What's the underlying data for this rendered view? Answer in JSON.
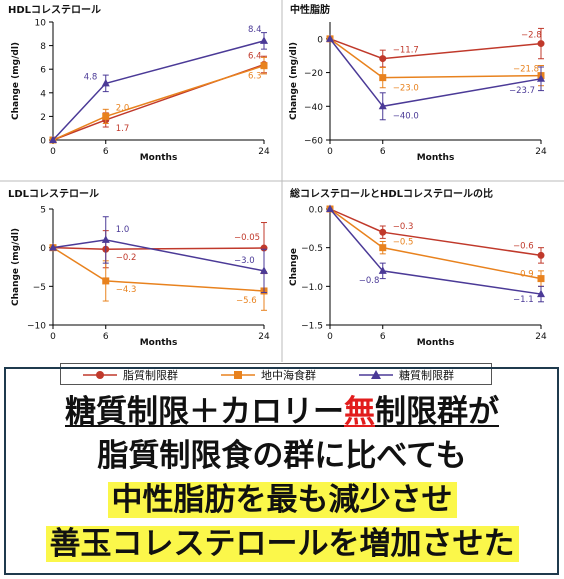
{
  "colors": {
    "fat_restricted": "#c0392b",
    "mediterranean": "#e8821e",
    "carb_restricted": "#4b3a97",
    "axis": "#000000",
    "separator": "#bbbbbb"
  },
  "chart_data": [
    {
      "type": "line",
      "title": "HDLコレステロール",
      "xlabel": "Months",
      "ylabel": "Change (mg/dl)",
      "x": [
        0,
        6,
        24
      ],
      "xticks": [
        0,
        6,
        24
      ],
      "ylim": [
        0,
        10
      ],
      "yticks": [
        0,
        2,
        4,
        6,
        8,
        10
      ],
      "series": [
        {
          "name": "脂質制限群",
          "values": [
            0,
            1.7,
            6.4
          ],
          "labels": [
            "",
            "1.7",
            "6.4"
          ],
          "err": [
            0,
            0.6,
            0.7
          ]
        },
        {
          "name": "地中海食群",
          "values": [
            0,
            2.0,
            6.3
          ],
          "labels": [
            "",
            "2.0",
            "6.3"
          ],
          "err": [
            0,
            0.6,
            0.7
          ]
        },
        {
          "name": "糖質制限群",
          "values": [
            0,
            4.8,
            8.4
          ],
          "labels": [
            "",
            "4.8",
            "8.4"
          ],
          "err": [
            0,
            0.7,
            0.7
          ]
        }
      ]
    },
    {
      "type": "line",
      "title": "中性脂肪",
      "xlabel": "Months",
      "ylabel": "Change (mg/dl)",
      "x": [
        0,
        6,
        24
      ],
      "xticks": [
        0,
        6,
        24
      ],
      "ylim": [
        -60,
        10
      ],
      "yticks": [
        -60,
        -40,
        -20,
        0
      ],
      "series": [
        {
          "name": "脂質制限群",
          "values": [
            0,
            -11.7,
            -2.8
          ],
          "labels": [
            "",
            "−11.7",
            "−2.8"
          ],
          "err": [
            0,
            5,
            9
          ]
        },
        {
          "name": "地中海食群",
          "values": [
            0,
            -23.0,
            -21.8
          ],
          "labels": [
            "",
            "−23.0",
            "−21.8"
          ],
          "err": [
            0,
            6,
            6
          ]
        },
        {
          "name": "糖質制限群",
          "values": [
            0,
            -40.0,
            -23.7
          ],
          "labels": [
            "",
            "−40.0",
            "−23.7"
          ],
          "err": [
            0,
            8,
            7
          ]
        }
      ]
    },
    {
      "type": "line",
      "title": "LDLコレステロール",
      "xlabel": "Months",
      "ylabel": "Change (mg/dl)",
      "x": [
        0,
        6,
        24
      ],
      "xticks": [
        0,
        6,
        24
      ],
      "ylim": [
        -10,
        5
      ],
      "yticks": [
        -10,
        -5,
        0,
        5
      ],
      "series": [
        {
          "name": "脂質制限群",
          "values": [
            0,
            -0.2,
            -0.05
          ],
          "labels": [
            "",
            "−0.2",
            "−0.05"
          ],
          "err": [
            0,
            2.4,
            3.3
          ]
        },
        {
          "name": "地中海食群",
          "values": [
            0,
            -4.3,
            -5.6
          ],
          "labels": [
            "",
            "−4.3",
            "−5.6"
          ],
          "err": [
            0,
            2.6,
            2.5
          ]
        },
        {
          "name": "糖質制限群",
          "values": [
            0,
            1.0,
            -3.0
          ],
          "labels": [
            "",
            "1.0",
            "−3.0"
          ],
          "err": [
            0,
            3,
            2.8
          ]
        }
      ]
    },
    {
      "type": "line",
      "title": "総コレステロールとHDLコレステロールの比",
      "xlabel": "Months",
      "ylabel": "Change",
      "x": [
        0,
        6,
        24
      ],
      "xticks": [
        0,
        6,
        24
      ],
      "ylim": [
        -1.5,
        0.0
      ],
      "yticks": [
        -1.5,
        -1.0,
        -0.5,
        0.0
      ],
      "series": [
        {
          "name": "脂質制限群",
          "values": [
            0,
            -0.3,
            -0.6
          ],
          "labels": [
            "",
            "−0.3",
            "−0.6"
          ],
          "err": [
            0,
            0.08,
            0.1
          ]
        },
        {
          "name": "地中海食群",
          "values": [
            0,
            -0.5,
            -0.9
          ],
          "labels": [
            "",
            "−0.5",
            "−0.9"
          ],
          "err": [
            0,
            0.08,
            0.1
          ]
        },
        {
          "name": "糖質制限群",
          "values": [
            0,
            -0.8,
            -1.1
          ],
          "labels": [
            "",
            "−0.8",
            "−1.1"
          ],
          "err": [
            0,
            0.1,
            0.1
          ]
        }
      ]
    }
  ],
  "legend": [
    {
      "label": "脂質制限群",
      "marker": "circle"
    },
    {
      "label": "地中海食群",
      "marker": "square"
    },
    {
      "label": "糖質制限群",
      "marker": "triangle"
    }
  ],
  "message": {
    "line1_a": "糖質制限＋カロリー",
    "line1_b": "無",
    "line1_c": "制限群が",
    "line2": "脂質制限食の群に比べても",
    "line3": "中性脂肪を最も減少させ",
    "line4": "善玉コレステロールを増加させた"
  }
}
